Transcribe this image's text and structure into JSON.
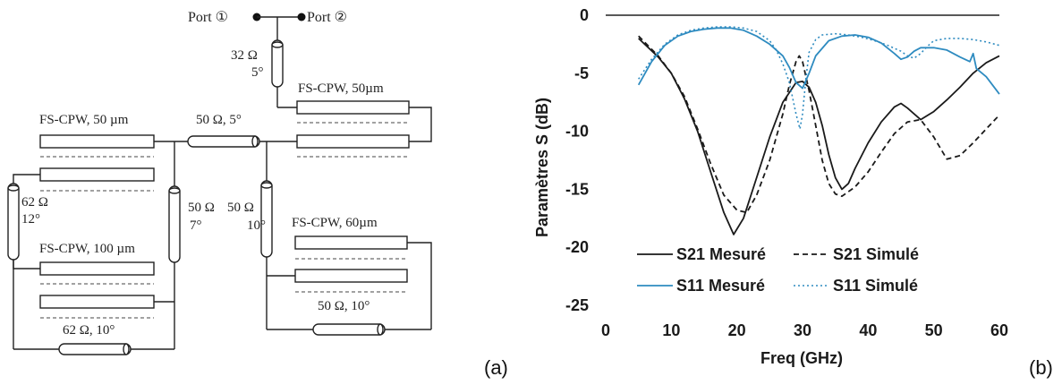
{
  "circuit": {
    "port1": "Port ①",
    "port2": "Port ②",
    "tl_top_z": "32 Ω",
    "tl_top_deg": "5°",
    "fs_top_right": "FS-CPW, 50µm",
    "fs_top_left": "FS-CPW, 50 µm",
    "tl_mid": "50 Ω, 5°",
    "tl_left_z": "62 Ω",
    "tl_left_deg": "12°",
    "tl_c1_z": "50 Ω",
    "tl_c1_deg": "7°",
    "tl_c2_z": "50 Ω",
    "tl_c2_deg": "10°",
    "fs_left_bottom": "FS-CPW, 100 µm",
    "fs_right_bottom": "FS-CPW, 60µm",
    "tl_bottom_left": "62 Ω, 10°",
    "tl_bottom_right": "50 Ω, 10°"
  },
  "labels": {
    "panel_a": "(a)",
    "panel_b": "(b)"
  },
  "colors": {
    "measured_s21": "#1a1a1a",
    "simulated_s21": "#1a1a1a",
    "measured_s11": "#2e8bc0",
    "simulated_s11": "#2e8bc0"
  },
  "chart_data": {
    "type": "line",
    "xlabel": "Freq (GHz)",
    "ylabel": "Paramètres S (dB)",
    "xlim": [
      0,
      60
    ],
    "ylim": [
      -25,
      0
    ],
    "xticks": [
      0,
      10,
      20,
      30,
      40,
      50,
      60
    ],
    "yticks": [
      0,
      -5,
      -10,
      -15,
      -20,
      -25
    ],
    "grid": false,
    "legend_position": "bottom-inside",
    "series": [
      {
        "name": "S21 Mesuré",
        "style": "solid",
        "color": "#1a1a1a",
        "x": [
          5,
          8,
          10,
          12,
          14,
          16,
          18,
          19.5,
          21,
          23,
          25,
          27,
          29,
          30,
          31,
          32,
          33,
          34,
          35,
          36,
          37,
          38,
          40,
          42,
          44,
          45,
          46,
          48,
          50,
          52,
          54,
          56,
          58,
          60
        ],
        "y": [
          -2,
          -3.6,
          -5,
          -7.2,
          -10,
          -13.5,
          -17,
          -18.9,
          -17.5,
          -14,
          -10.5,
          -7.5,
          -5.8,
          -5.7,
          -6.2,
          -7.5,
          -9.5,
          -12,
          -14,
          -15,
          -14.5,
          -13.2,
          -11,
          -9.2,
          -7.9,
          -7.6,
          -8,
          -9,
          -8.3,
          -7.3,
          -6.2,
          -5,
          -4.1,
          -3.5
        ]
      },
      {
        "name": "S21 Simulé",
        "style": "dashed",
        "color": "#1a1a1a",
        "x": [
          5,
          8,
          10,
          12,
          14,
          16,
          18,
          20,
          21.5,
          23,
          25,
          27,
          28,
          29,
          29.5,
          30,
          31,
          32,
          33,
          34,
          35,
          36,
          38,
          40,
          42,
          44,
          46,
          48,
          50,
          52,
          54,
          56,
          58,
          60
        ],
        "y": [
          -1.8,
          -3.5,
          -5,
          -7,
          -9.8,
          -12.8,
          -15.5,
          -16.8,
          -17,
          -15.5,
          -12.5,
          -8.5,
          -6,
          -4,
          -3.5,
          -4,
          -6.5,
          -9.5,
          -12.5,
          -14.5,
          -15.4,
          -15.6,
          -14.8,
          -13.5,
          -11.8,
          -10.2,
          -9.2,
          -9,
          -10.5,
          -12.4,
          -12.1,
          -11,
          -9.8,
          -8.6
        ]
      },
      {
        "name": "S11 Mesuré",
        "style": "solid",
        "color": "#2e8bc0",
        "x": [
          5,
          7,
          9,
          11,
          13,
          15,
          17,
          19,
          21,
          23,
          25,
          27,
          28,
          29,
          30,
          31,
          32,
          34,
          36,
          38,
          40,
          42,
          44,
          45,
          46,
          47,
          48,
          50,
          52,
          54,
          55.5,
          56,
          56.5,
          58,
          60
        ],
        "y": [
          -6,
          -4,
          -2.6,
          -1.8,
          -1.4,
          -1.2,
          -1.1,
          -1.1,
          -1.3,
          -1.8,
          -2.5,
          -3.5,
          -4.5,
          -5.8,
          -6.3,
          -5,
          -3.5,
          -2.2,
          -1.8,
          -1.7,
          -1.9,
          -2.4,
          -3.3,
          -3.8,
          -3.6,
          -3.1,
          -2.8,
          -2.8,
          -3,
          -3.6,
          -4,
          -3.3,
          -4.6,
          -5.3,
          -6.8
        ]
      },
      {
        "name": "S11 Simulé",
        "style": "dotted",
        "color": "#2e8bc0",
        "x": [
          5,
          7,
          9,
          11,
          13,
          15,
          17,
          19,
          21,
          23,
          25,
          26,
          27,
          28,
          29,
          29.6,
          30,
          30.5,
          31,
          32,
          33,
          35,
          37,
          39,
          41,
          43,
          45,
          46,
          47,
          48,
          49,
          50,
          52,
          54,
          56,
          58,
          60
        ],
        "y": [
          -5.5,
          -3.8,
          -2.5,
          -1.7,
          -1.3,
          -1.1,
          -1,
          -1,
          -1.1,
          -1.4,
          -2.2,
          -3,
          -4.2,
          -5.8,
          -8.5,
          -9.8,
          -8.5,
          -5.5,
          -3.2,
          -2.1,
          -1.7,
          -1.6,
          -1.7,
          -1.9,
          -2.2,
          -2.6,
          -3.1,
          -3.5,
          -3.7,
          -3.3,
          -2.7,
          -2.2,
          -2,
          -2,
          -2.1,
          -2.3,
          -2.6
        ]
      }
    ]
  }
}
